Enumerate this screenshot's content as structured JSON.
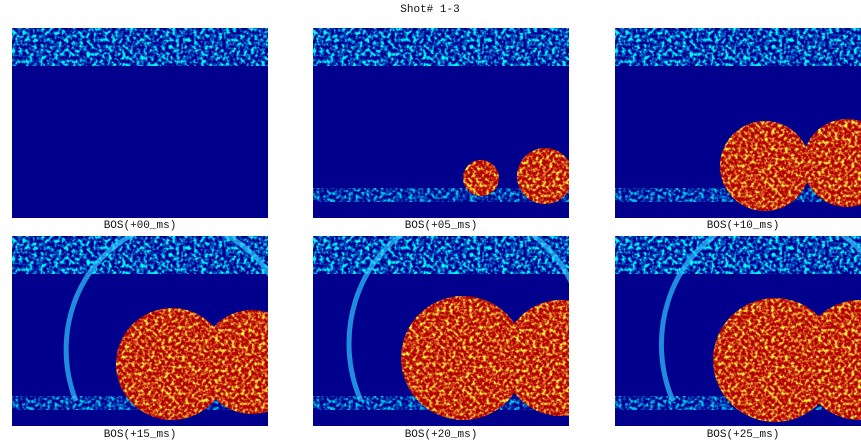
{
  "title": "Shot# 1-3",
  "panels": [
    {
      "label": "BOS(+00_ms)"
    },
    {
      "label": "BOS(+05_ms)"
    },
    {
      "label": "BOS(+10_ms)"
    },
    {
      "label": "BOS(+15_ms)"
    },
    {
      "label": "BOS(+20_ms)"
    },
    {
      "label": "BOS(+25_ms)"
    }
  ]
}
